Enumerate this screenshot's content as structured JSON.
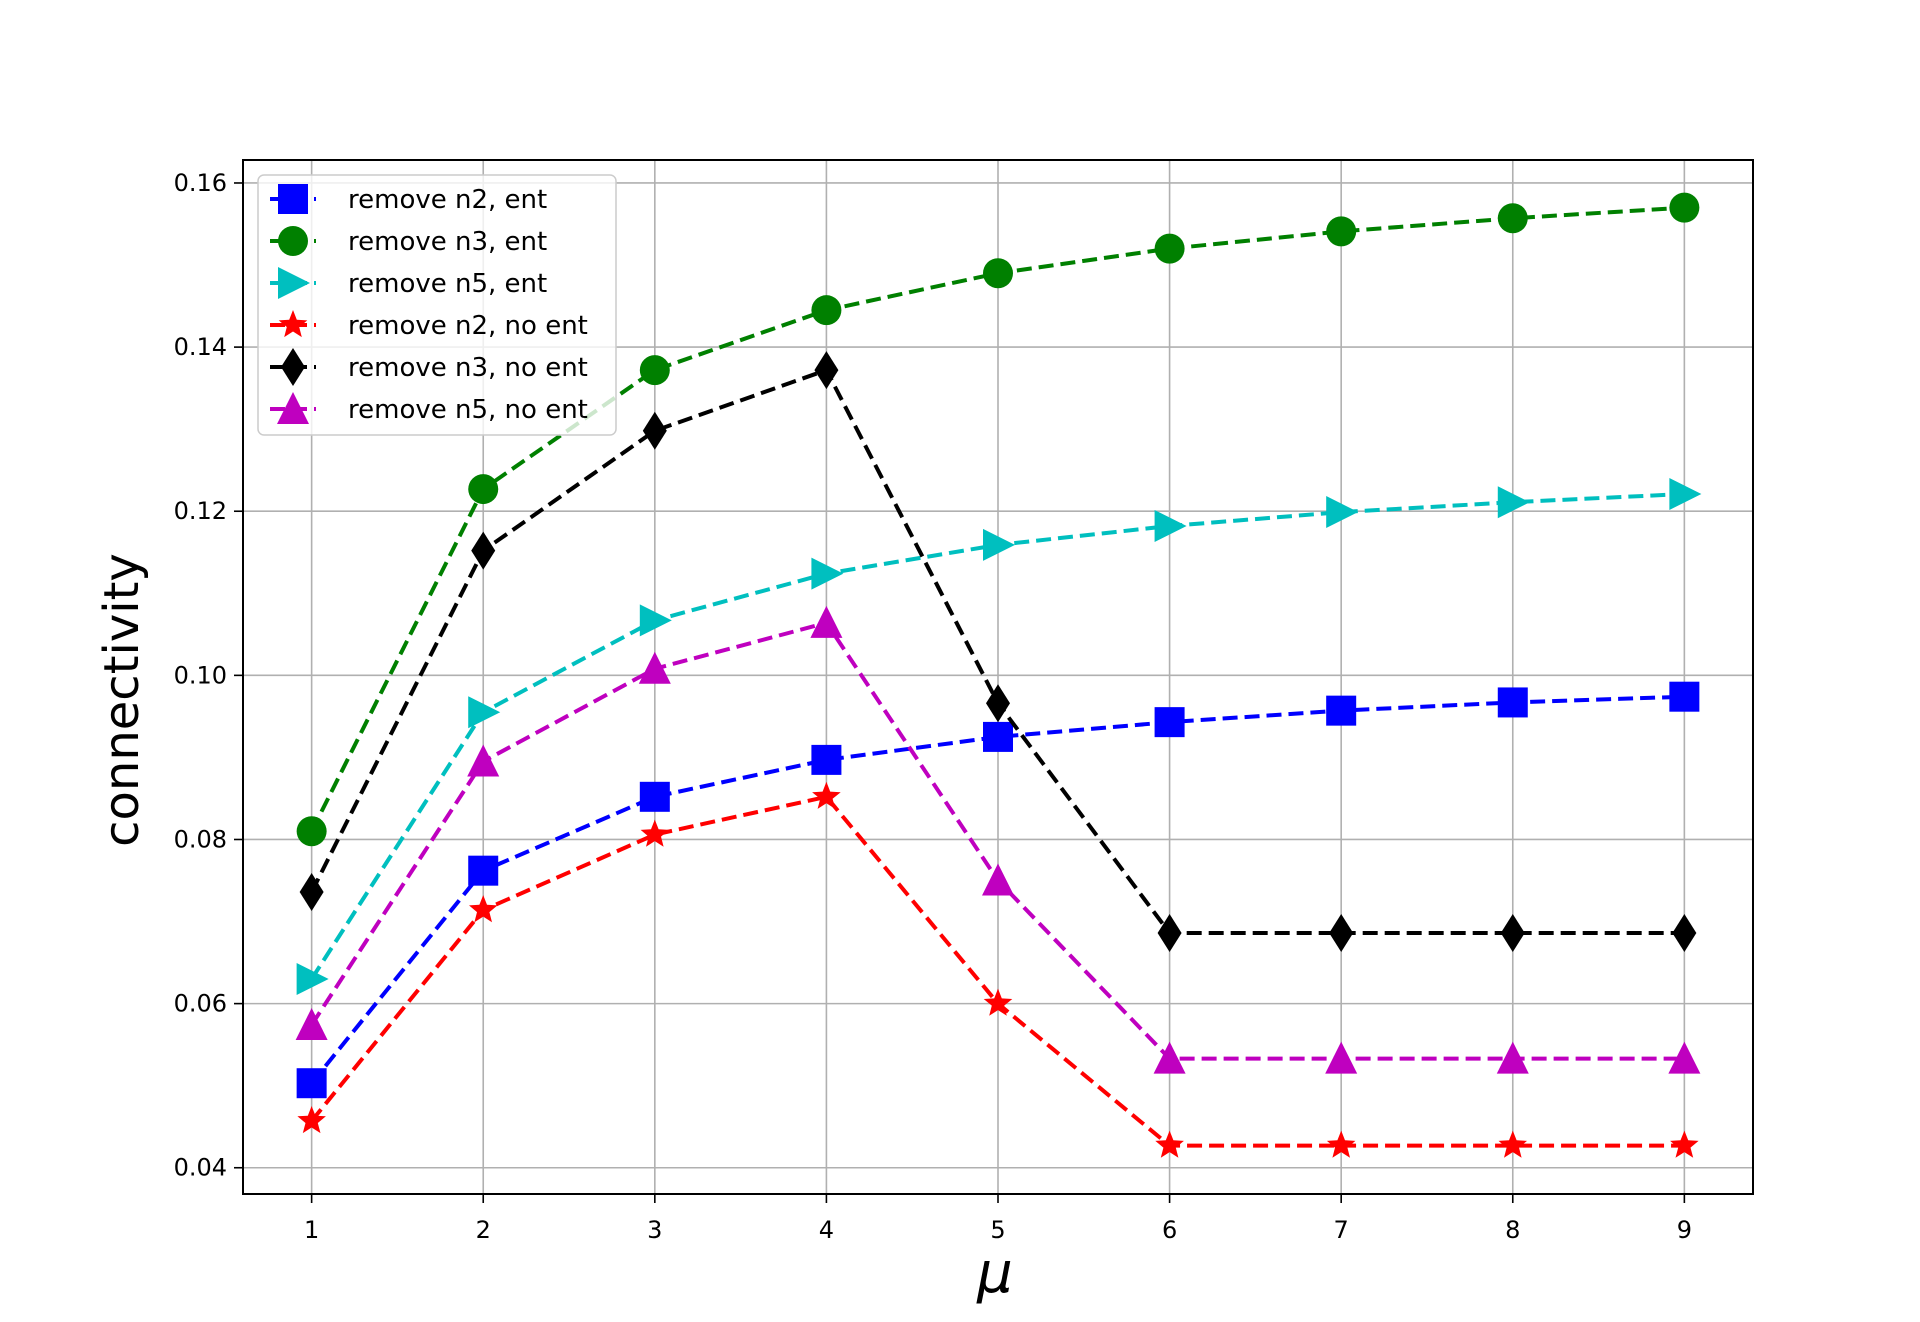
{
  "chart_data": {
    "type": "line",
    "title": "",
    "xlabel": "μ",
    "ylabel": "connectivity",
    "x": [
      1,
      2,
      3,
      4,
      5,
      6,
      7,
      8,
      9
    ],
    "xticks": [
      "1",
      "2",
      "3",
      "4",
      "5",
      "6",
      "7",
      "8",
      "9"
    ],
    "yticks": [
      "0.04",
      "0.06",
      "0.08",
      "0.10",
      "0.12",
      "0.14",
      "0.16"
    ],
    "ytick_values": [
      0.04,
      0.06,
      0.08,
      0.1,
      0.12,
      0.14,
      0.16
    ],
    "xlim": [
      0.6,
      9.4
    ],
    "ylim": [
      0.0368,
      0.1628
    ],
    "grid": true,
    "legend_position": "top-left",
    "series": [
      {
        "name": "remove n2, ent",
        "color": "#0000ff",
        "marker": "square",
        "values": [
          0.0503,
          0.0762,
          0.0852,
          0.0897,
          0.0925,
          0.0943,
          0.0957,
          0.0967,
          0.0974
        ]
      },
      {
        "name": "remove n3, ent",
        "color": "#008000",
        "marker": "circle",
        "values": [
          0.081,
          0.1227,
          0.1372,
          0.1445,
          0.149,
          0.152,
          0.1541,
          0.1557,
          0.157
        ]
      },
      {
        "name": "remove n5, ent",
        "color": "#00bfbf",
        "marker": "triangle-right",
        "values": [
          0.063,
          0.0955,
          0.1067,
          0.1124,
          0.1159,
          0.1182,
          0.1199,
          0.1211,
          0.1221
        ]
      },
      {
        "name": "remove n2, no ent",
        "color": "#ff0000",
        "marker": "star",
        "values": [
          0.0457,
          0.0714,
          0.0806,
          0.0852,
          0.06,
          0.0427,
          0.0427,
          0.0427,
          0.0427
        ]
      },
      {
        "name": "remove n3, no ent",
        "color": "#000000",
        "marker": "thin-diamond",
        "values": [
          0.0736,
          0.1152,
          0.1298,
          0.1372,
          0.0966,
          0.0686,
          0.0686,
          0.0686,
          0.0686
        ]
      },
      {
        "name": "remove n5, no ent",
        "color": "#bf00bf",
        "marker": "triangle-up",
        "values": [
          0.0574,
          0.0895,
          0.1008,
          0.1064,
          0.075,
          0.0533,
          0.0533,
          0.0533,
          0.0533
        ]
      }
    ]
  }
}
